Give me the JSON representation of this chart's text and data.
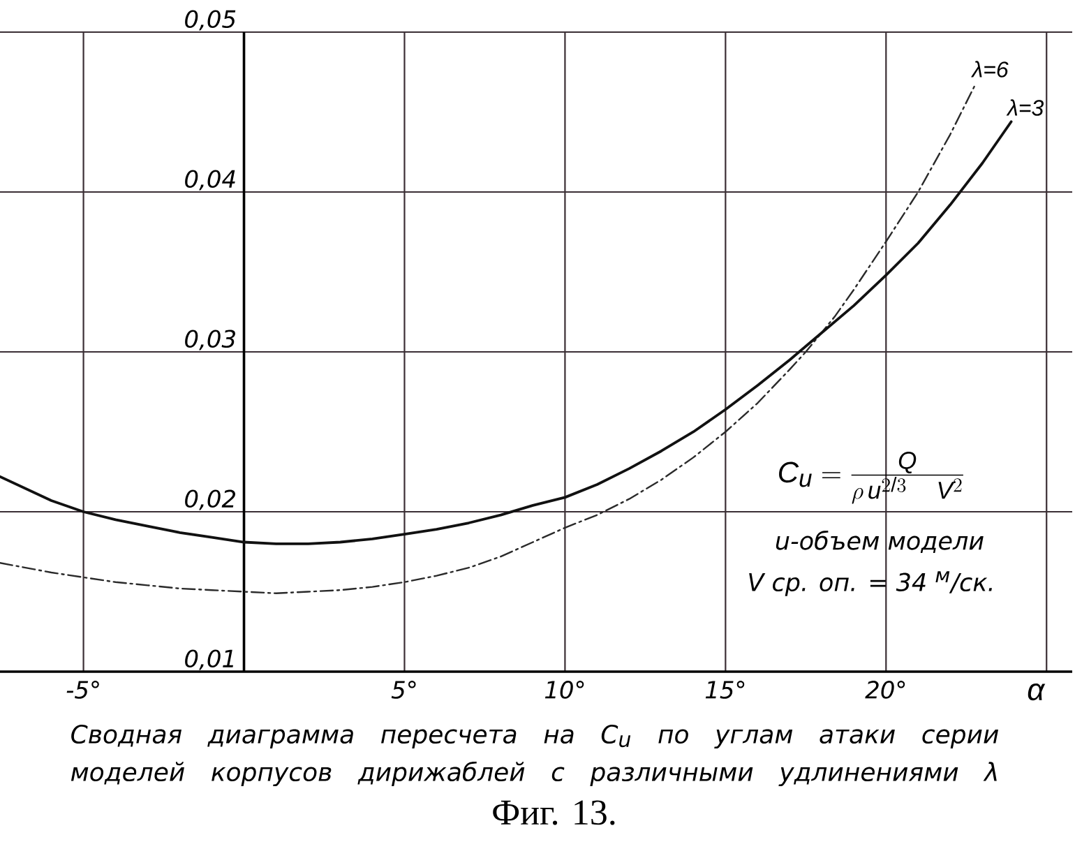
{
  "chart_data": {
    "type": "line",
    "xlabel": "α",
    "xlim": [
      -7.6,
      25.8
    ],
    "ylim": [
      0.01,
      0.05
    ],
    "xticks": [
      {
        "value": -5,
        "label": "-5°"
      },
      {
        "value": 0,
        "label": null
      },
      {
        "value": 5,
        "label": "5°"
      },
      {
        "value": 10,
        "label": "10°"
      },
      {
        "value": 15,
        "label": "15°"
      },
      {
        "value": 20,
        "label": "20°"
      },
      {
        "value": 25,
        "label": null
      }
    ],
    "yticks": [
      {
        "value": 0.01,
        "label": "0,01"
      },
      {
        "value": 0.02,
        "label": "0,02"
      },
      {
        "value": 0.03,
        "label": "0,03"
      },
      {
        "value": 0.04,
        "label": "0,04"
      },
      {
        "value": 0.05,
        "label": "0,05"
      }
    ],
    "grid": true,
    "series": [
      {
        "name": "λ=6",
        "color": "#2a2a2a",
        "line_style": "dashed",
        "x": [
          -7.6,
          -6,
          -5,
          -4,
          -3,
          -2,
          -1,
          0,
          1,
          2,
          3,
          4,
          5,
          6,
          7,
          8,
          9,
          10,
          11,
          12,
          13,
          14,
          15,
          16,
          17,
          17.5,
          18.4,
          19,
          20,
          21,
          22,
          22.8
        ],
        "values": [
          0.0168,
          0.0162,
          0.0159,
          0.0156,
          0.0154,
          0.0152,
          0.0151,
          0.015,
          0.0149,
          0.015,
          0.0151,
          0.0153,
          0.0156,
          0.016,
          0.0165,
          0.0172,
          0.0181,
          0.019,
          0.0198,
          0.0208,
          0.022,
          0.0234,
          0.025,
          0.0268,
          0.0289,
          0.03,
          0.0322,
          0.0339,
          0.0369,
          0.04,
          0.0436,
          0.0468
        ]
      },
      {
        "name": "λ=3",
        "color": "#111111",
        "line_style": "solid",
        "x": [
          -7.6,
          -6,
          -5,
          -4,
          -3,
          -2,
          -1,
          0,
          1,
          2,
          3,
          4,
          5,
          6,
          7,
          8,
          9,
          10,
          11,
          12,
          13,
          14,
          15,
          16,
          17,
          18,
          19,
          20,
          21,
          22,
          23,
          23.9
        ],
        "values": [
          0.0222,
          0.0207,
          0.02,
          0.0195,
          0.0191,
          0.0187,
          0.0184,
          0.0181,
          0.018,
          0.018,
          0.0181,
          0.0183,
          0.0186,
          0.0189,
          0.0193,
          0.0198,
          0.0204,
          0.0209,
          0.0217,
          0.0227,
          0.0238,
          0.025,
          0.0264,
          0.0279,
          0.0295,
          0.0312,
          0.0329,
          0.0348,
          0.0368,
          0.0392,
          0.0418,
          0.0444
        ]
      }
    ],
    "annotations": [
      "C_u=\\frac{Q}{\\rho\\,u^{2/3}\\quad V^{2}}",
      "u-объем модели",
      "V ср. оп. = 34 $^{м}$/ск.",
      "Сводная диаграмма пересчета на C$_{u}$ по углам атаки серии моделей корпусов дирижаблей с различными удлинениями λ",
      "Фиг. 13."
    ]
  }
}
